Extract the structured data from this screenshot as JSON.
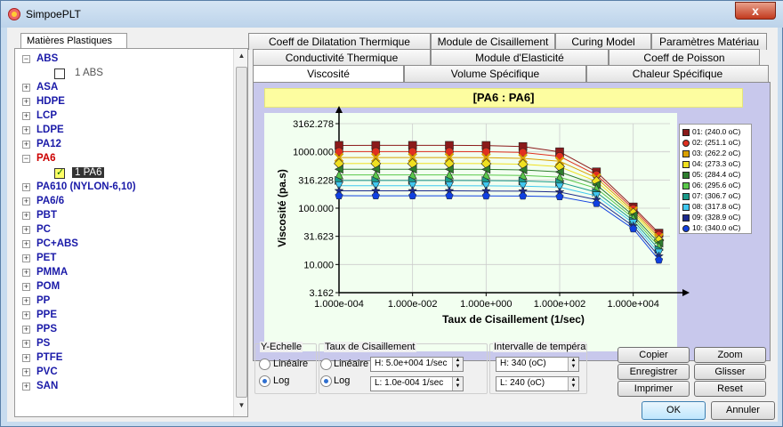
{
  "window": {
    "title": "SimpoePLT",
    "close_glyph": "x"
  },
  "left": {
    "tab_label": "Matières Plastiques",
    "tree": [
      {
        "num": "1",
        "name": "ABS",
        "expanded": true,
        "child": "1  ABS",
        "child_checked": false,
        "child_selected": false
      },
      {
        "num": "2",
        "name": "ASA"
      },
      {
        "num": "3",
        "name": "HDPE"
      },
      {
        "num": "4",
        "name": "LCP"
      },
      {
        "num": "5",
        "name": "LDPE"
      },
      {
        "num": "6",
        "name": "PA12"
      },
      {
        "num": "7",
        "name": "PA6",
        "expanded": true,
        "red": true,
        "child": "1  PA6",
        "child_checked": true,
        "child_selected": true
      },
      {
        "num": "8",
        "name": "PA610 (NYLON-6,10)"
      },
      {
        "num": "9",
        "name": "PA6/6"
      },
      {
        "num": "10",
        "name": "PBT"
      },
      {
        "num": "11",
        "name": "PC"
      },
      {
        "num": "12",
        "name": "PC+ABS"
      },
      {
        "num": "13",
        "name": "PET"
      },
      {
        "num": "14",
        "name": "PMMA"
      },
      {
        "num": "15",
        "name": "POM"
      },
      {
        "num": "16",
        "name": "PP"
      },
      {
        "num": "17",
        "name": "PPE"
      },
      {
        "num": "18",
        "name": "PPS"
      },
      {
        "num": "19",
        "name": "PS"
      },
      {
        "num": "20",
        "name": "PTFE"
      },
      {
        "num": "21",
        "name": "PVC"
      },
      {
        "num": "22",
        "name": "SAN"
      }
    ]
  },
  "tabs": {
    "row1": [
      "Coeff de Dilatation Thermique",
      "Module de Cisaillement",
      "Curing Model",
      "Paramètres Matériau"
    ],
    "row2": [
      "Conductivité Thermique",
      "Module d'Elasticité",
      "Coeff de Poisson"
    ],
    "row3": [
      "Viscosité",
      "Volume Spécifique",
      "Chaleur Spécifique"
    ],
    "active": "Viscosité"
  },
  "chart_header": "[PA6 : PA6]",
  "chart_data": {
    "type": "line",
    "xlabel": "Taux de Cisaillement (1/sec)",
    "ylabel": "Viscosité (pa.s)",
    "xscale": "log",
    "yscale": "log",
    "xticks": [
      "1.000e-004",
      "1.000e-002",
      "1.000e+000",
      "1.000e+002",
      "1.000e+004"
    ],
    "yticks": [
      "3162.278",
      "1000.000",
      "316.228",
      "100.000",
      "31.623",
      "10.000",
      "3.162"
    ],
    "xlim": [
      0.0001,
      100000
    ],
    "ylim": [
      3.162,
      3162.278
    ],
    "grid": true,
    "legend_position": "right",
    "x": [
      0.0001,
      0.001,
      0.01,
      0.1,
      1,
      10,
      100,
      1000,
      10000,
      50000
    ],
    "series": [
      {
        "name": "01: (240.0 oC)",
        "color": "#8b1a1a",
        "marker": "square",
        "values": [
          1300,
          1300,
          1300,
          1300,
          1295,
          1240,
          1000,
          440,
          105,
          36
        ]
      },
      {
        "name": "02: (251.1 oC)",
        "color": "#e03020",
        "marker": "circle",
        "values": [
          1010,
          1010,
          1010,
          1010,
          1005,
          975,
          830,
          390,
          97,
          33
        ]
      },
      {
        "name": "03: (262.2 oC)",
        "color": "#d9a000",
        "marker": "x",
        "values": [
          790,
          790,
          790,
          790,
          786,
          765,
          680,
          345,
          89,
          30
        ]
      },
      {
        "name": "04: (273.3 oC)",
        "color": "#f0e020",
        "marker": "diamond",
        "values": [
          620,
          620,
          620,
          620,
          617,
          603,
          545,
          300,
          82,
          27
        ]
      },
      {
        "name": "05: (284.4 oC)",
        "color": "#2e7d2e",
        "marker": "triangle-left",
        "values": [
          490,
          490,
          490,
          490,
          488,
          478,
          440,
          260,
          74,
          24
        ]
      },
      {
        "name": "06: (295.6 oC)",
        "color": "#5ac84a",
        "marker": "triangle-up",
        "values": [
          390,
          390,
          390,
          390,
          388,
          381,
          356,
          225,
          67,
          21
        ]
      },
      {
        "name": "07: (306.7 oC)",
        "color": "#1a9a8a",
        "marker": "triangle-right",
        "values": [
          310,
          310,
          310,
          310,
          309,
          304,
          288,
          192,
          60,
          18.5
        ]
      },
      {
        "name": "08: (317.8 oC)",
        "color": "#40c8f0",
        "marker": "triangle-down",
        "values": [
          250,
          250,
          250,
          250,
          249,
          246,
          236,
          165,
          54,
          16
        ]
      },
      {
        "name": "09: (328.9 oC)",
        "color": "#1c2a8c",
        "marker": "star",
        "values": [
          203,
          203,
          203,
          203,
          202,
          200,
          193,
          141,
          48,
          14
        ]
      },
      {
        "name": "10: (340.0 oC)",
        "color": "#1040e0",
        "marker": "pentagon",
        "values": [
          166,
          166,
          166,
          166,
          165,
          164,
          160,
          121,
          43,
          12
        ]
      }
    ]
  },
  "controls": {
    "yscale": {
      "title": "Y-Echelle",
      "linear": "Linéaire",
      "log": "Log",
      "selected": "log"
    },
    "shear": {
      "title": "Taux de Cisaillement",
      "linear": "Linéaire",
      "log": "Log",
      "selected": "log",
      "high": "H: 5.0e+004 1/sec",
      "low": "L: 1.0e-004 1/sec"
    },
    "temp": {
      "title": "Intervalle de températ",
      "high": "H: 340 (oC)",
      "low": "L: 240 (oC)"
    }
  },
  "buttons": {
    "copy": "Copier",
    "zoom": "Zoom",
    "save": "Enregistrer",
    "drag": "Glisser",
    "print": "Imprimer",
    "reset": "Reset",
    "ok": "OK",
    "cancel": "Annuler"
  }
}
